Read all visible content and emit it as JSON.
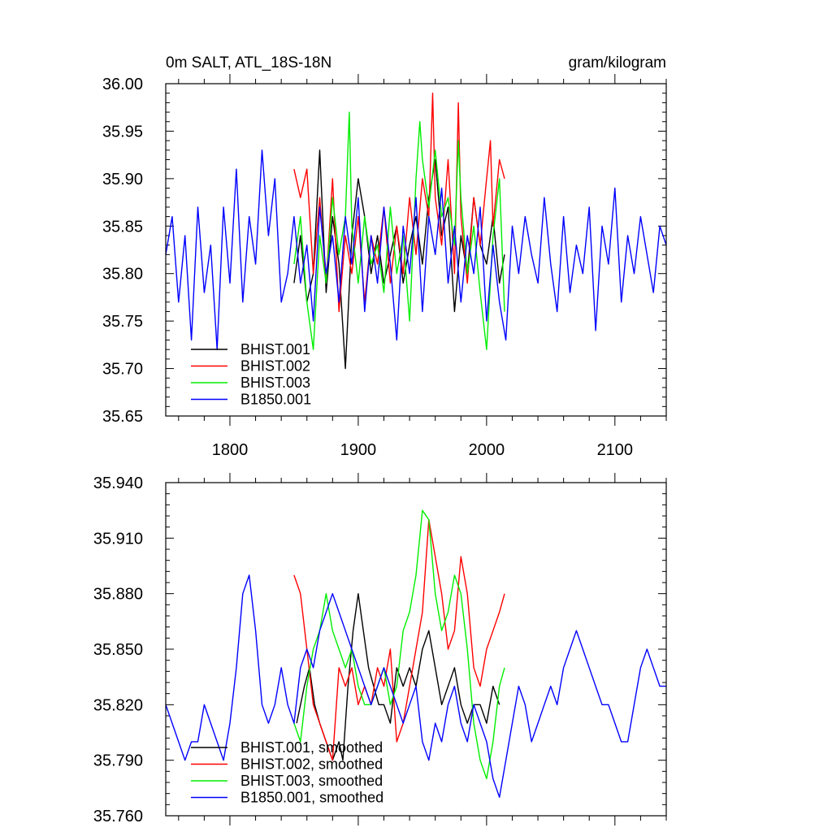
{
  "chart_data": [
    {
      "type": "line",
      "title_left": "0m SALT, ATL_18S-18N",
      "title_right": "gram/kilogram",
      "xlabel": "",
      "ylabel": "",
      "xlim": [
        1750,
        2140
      ],
      "ylim": [
        35.65,
        36.0
      ],
      "x_ticks": [
        1800,
        1900,
        2000,
        2100
      ],
      "x_tick_labels": [
        "1800",
        "1900",
        "2000",
        "2100"
      ],
      "y_ticks": [
        35.65,
        35.7,
        35.75,
        35.8,
        35.85,
        35.9,
        35.95,
        36.0
      ],
      "y_tick_labels": [
        "35.65",
        "35.70",
        "35.75",
        "35.80",
        "35.85",
        "35.90",
        "35.95",
        "36.00"
      ],
      "legend_position": "bottom-left",
      "series": [
        {
          "name": "BHIST.001",
          "color": "#000000",
          "x": [
            1850,
            1855,
            1860,
            1865,
            1870,
            1875,
            1880,
            1885,
            1890,
            1895,
            1900,
            1905,
            1910,
            1915,
            1920,
            1925,
            1930,
            1935,
            1940,
            1945,
            1950,
            1955,
            1960,
            1965,
            1970,
            1975,
            1980,
            1985,
            1990,
            1995,
            2000,
            2005,
            2010,
            2014
          ],
          "values": [
            35.79,
            35.84,
            35.77,
            35.8,
            35.93,
            35.78,
            35.86,
            35.81,
            35.7,
            35.84,
            35.9,
            35.86,
            35.8,
            35.84,
            35.79,
            35.82,
            35.85,
            35.79,
            35.83,
            35.86,
            35.81,
            35.88,
            35.92,
            35.84,
            35.87,
            35.76,
            35.84,
            35.8,
            35.88,
            35.83,
            35.81,
            35.86,
            35.79,
            35.82
          ]
        },
        {
          "name": "BHIST.002",
          "color": "#ff0000",
          "x": [
            1850,
            1855,
            1860,
            1865,
            1870,
            1875,
            1880,
            1885,
            1890,
            1895,
            1900,
            1905,
            1910,
            1915,
            1920,
            1925,
            1930,
            1935,
            1940,
            1945,
            1950,
            1955,
            1958,
            1960,
            1965,
            1970,
            1975,
            1978,
            1980,
            1985,
            1990,
            1995,
            2000,
            2003,
            2005,
            2010,
            2014
          ],
          "values": [
            35.91,
            35.88,
            35.91,
            35.8,
            35.88,
            35.79,
            35.9,
            35.76,
            35.84,
            35.8,
            35.86,
            35.77,
            35.84,
            35.81,
            35.87,
            35.79,
            35.85,
            35.8,
            35.88,
            35.82,
            35.9,
            35.86,
            35.99,
            35.88,
            35.83,
            35.92,
            35.8,
            35.98,
            35.86,
            35.79,
            35.88,
            35.83,
            35.9,
            35.94,
            35.85,
            35.92,
            35.9
          ]
        },
        {
          "name": "BHIST.003",
          "color": "#00ee00",
          "x": [
            1850,
            1855,
            1860,
            1865,
            1870,
            1875,
            1880,
            1885,
            1890,
            1893,
            1895,
            1900,
            1905,
            1910,
            1915,
            1920,
            1925,
            1930,
            1935,
            1940,
            1945,
            1948,
            1950,
            1955,
            1960,
            1965,
            1970,
            1975,
            1978,
            1980,
            1985,
            1990,
            1995,
            2000,
            2005,
            2010,
            2014
          ],
          "values": [
            35.81,
            35.86,
            35.77,
            35.72,
            35.84,
            35.79,
            35.88,
            35.82,
            35.86,
            35.97,
            35.85,
            35.79,
            35.86,
            35.81,
            35.83,
            35.78,
            35.87,
            35.8,
            35.84,
            35.75,
            35.9,
            35.96,
            35.92,
            35.87,
            35.93,
            35.86,
            35.88,
            35.83,
            35.94,
            35.88,
            35.8,
            35.85,
            35.78,
            35.72,
            35.84,
            35.9,
            35.76
          ]
        },
        {
          "name": "B1850.001",
          "color": "#0000ff",
          "x": [
            1750,
            1755,
            1760,
            1765,
            1770,
            1775,
            1780,
            1785,
            1790,
            1795,
            1800,
            1805,
            1810,
            1815,
            1820,
            1825,
            1830,
            1835,
            1840,
            1845,
            1850,
            1855,
            1860,
            1865,
            1870,
            1875,
            1880,
            1885,
            1890,
            1895,
            1900,
            1905,
            1910,
            1915,
            1920,
            1925,
            1930,
            1935,
            1940,
            1945,
            1950,
            1955,
            1960,
            1965,
            1970,
            1975,
            1980,
            1985,
            1990,
            1995,
            2000,
            2005,
            2010,
            2015,
            2020,
            2025,
            2030,
            2035,
            2040,
            2045,
            2050,
            2055,
            2060,
            2065,
            2070,
            2075,
            2080,
            2085,
            2090,
            2095,
            2100,
            2105,
            2110,
            2115,
            2120,
            2125,
            2130,
            2135,
            2140
          ],
          "values": [
            35.82,
            35.86,
            35.77,
            35.84,
            35.73,
            35.87,
            35.78,
            35.83,
            35.72,
            35.87,
            35.79,
            35.91,
            35.77,
            35.86,
            35.81,
            35.93,
            35.84,
            35.9,
            35.77,
            35.8,
            35.86,
            35.79,
            35.83,
            35.75,
            35.87,
            35.8,
            35.84,
            35.77,
            35.86,
            35.81,
            35.88,
            35.76,
            35.84,
            35.79,
            35.87,
            35.81,
            35.73,
            35.85,
            35.8,
            35.88,
            35.76,
            35.86,
            35.82,
            35.89,
            35.79,
            35.85,
            35.77,
            35.84,
            35.8,
            35.87,
            35.75,
            35.83,
            35.77,
            35.73,
            35.85,
            35.8,
            35.86,
            35.82,
            35.79,
            35.88,
            35.81,
            35.76,
            35.86,
            35.78,
            35.83,
            35.8,
            35.87,
            35.74,
            35.85,
            35.81,
            35.89,
            35.77,
            35.84,
            35.8,
            35.86,
            35.82,
            35.78,
            35.85,
            35.83
          ]
        }
      ]
    },
    {
      "type": "line",
      "xlabel": "",
      "ylabel": "",
      "xlim": [
        1750,
        2140
      ],
      "ylim": [
        35.76,
        35.94
      ],
      "x_ticks": [
        1800,
        1900,
        2000,
        2100
      ],
      "y_ticks": [
        35.76,
        35.79,
        35.82,
        35.85,
        35.88,
        35.91,
        35.94
      ],
      "y_tick_labels": [
        "35.760",
        "35.790",
        "35.820",
        "35.850",
        "35.880",
        "35.910",
        "35.940"
      ],
      "legend_position": "bottom-left",
      "series": [
        {
          "name": "BHIST.001, smoothed",
          "color": "#000000",
          "x": [
            1852,
            1858,
            1862,
            1866,
            1870,
            1875,
            1880,
            1885,
            1888,
            1892,
            1896,
            1900,
            1904,
            1908,
            1912,
            1916,
            1920,
            1925,
            1930,
            1935,
            1940,
            1945,
            1950,
            1955,
            1960,
            1965,
            1970,
            1975,
            1980,
            1985,
            1990,
            1995,
            2000,
            2005,
            2010
          ],
          "values": [
            35.81,
            35.83,
            35.84,
            35.82,
            35.81,
            35.8,
            35.79,
            35.8,
            35.79,
            35.83,
            35.86,
            35.88,
            35.86,
            35.84,
            35.83,
            35.82,
            35.82,
            35.81,
            35.84,
            35.83,
            35.84,
            35.83,
            35.85,
            35.86,
            35.84,
            35.82,
            35.83,
            35.84,
            35.82,
            35.81,
            35.82,
            35.82,
            35.81,
            35.83,
            35.82
          ]
        },
        {
          "name": "BHIST.002, smoothed",
          "color": "#ff0000",
          "x": [
            1850,
            1855,
            1860,
            1865,
            1870,
            1875,
            1880,
            1885,
            1890,
            1895,
            1900,
            1905,
            1910,
            1915,
            1920,
            1925,
            1930,
            1935,
            1940,
            1945,
            1950,
            1955,
            1960,
            1965,
            1970,
            1975,
            1980,
            1985,
            1990,
            1995,
            2000,
            2005,
            2010,
            2014
          ],
          "values": [
            35.89,
            35.88,
            35.85,
            35.82,
            35.81,
            35.8,
            35.79,
            35.84,
            35.83,
            35.84,
            35.82,
            35.83,
            35.82,
            35.84,
            35.83,
            35.85,
            35.8,
            35.81,
            35.83,
            35.85,
            35.87,
            35.92,
            35.9,
            35.88,
            35.85,
            35.86,
            35.9,
            35.88,
            35.84,
            35.83,
            35.85,
            35.86,
            35.87,
            35.88
          ]
        },
        {
          "name": "BHIST.003, smoothed",
          "color": "#00ee00",
          "x": [
            1850,
            1855,
            1860,
            1865,
            1870,
            1875,
            1880,
            1885,
            1890,
            1895,
            1900,
            1905,
            1910,
            1915,
            1920,
            1925,
            1930,
            1935,
            1940,
            1945,
            1950,
            1955,
            1960,
            1965,
            1970,
            1975,
            1980,
            1985,
            1990,
            1995,
            2000,
            2005,
            2010,
            2014
          ],
          "values": [
            35.81,
            35.8,
            35.83,
            35.85,
            35.86,
            35.88,
            35.86,
            35.85,
            35.84,
            35.85,
            35.83,
            35.82,
            35.82,
            35.83,
            35.84,
            35.82,
            35.83,
            35.86,
            35.87,
            35.89,
            35.925,
            35.92,
            35.88,
            35.86,
            35.87,
            35.89,
            35.88,
            35.85,
            35.81,
            35.79,
            35.78,
            35.8,
            35.83,
            35.84
          ]
        },
        {
          "name": "B1850.001, smoothed",
          "color": "#0000ff",
          "x": [
            1750,
            1755,
            1760,
            1765,
            1770,
            1775,
            1780,
            1785,
            1790,
            1795,
            1800,
            1805,
            1810,
            1815,
            1820,
            1825,
            1830,
            1835,
            1840,
            1845,
            1850,
            1855,
            1860,
            1865,
            1870,
            1875,
            1880,
            1885,
            1890,
            1895,
            1900,
            1905,
            1910,
            1915,
            1920,
            1925,
            1930,
            1935,
            1940,
            1945,
            1950,
            1955,
            1960,
            1965,
            1970,
            1975,
            1980,
            1985,
            1990,
            1995,
            2000,
            2005,
            2010,
            2015,
            2020,
            2025,
            2030,
            2035,
            2040,
            2045,
            2050,
            2055,
            2060,
            2065,
            2070,
            2075,
            2080,
            2085,
            2090,
            2095,
            2100,
            2105,
            2110,
            2115,
            2120,
            2125,
            2130,
            2135,
            2140
          ],
          "values": [
            35.82,
            35.81,
            35.8,
            35.79,
            35.8,
            35.8,
            35.82,
            35.81,
            35.8,
            35.79,
            35.81,
            35.84,
            35.88,
            35.89,
            35.86,
            35.82,
            35.81,
            35.82,
            35.84,
            35.82,
            35.81,
            35.84,
            35.85,
            35.84,
            35.86,
            35.87,
            35.88,
            35.87,
            35.86,
            35.85,
            35.84,
            35.83,
            35.82,
            35.83,
            35.84,
            35.83,
            35.82,
            35.81,
            35.82,
            35.83,
            35.8,
            35.79,
            35.81,
            35.8,
            35.82,
            35.83,
            35.81,
            35.8,
            35.82,
            35.81,
            35.8,
            35.78,
            35.77,
            35.79,
            35.81,
            35.83,
            35.82,
            35.8,
            35.81,
            35.82,
            35.83,
            35.82,
            35.84,
            35.85,
            35.86,
            35.85,
            35.84,
            35.83,
            35.82,
            35.82,
            35.81,
            35.8,
            35.8,
            35.82,
            35.84,
            35.85,
            35.84,
            35.83,
            35.83
          ]
        }
      ]
    }
  ]
}
